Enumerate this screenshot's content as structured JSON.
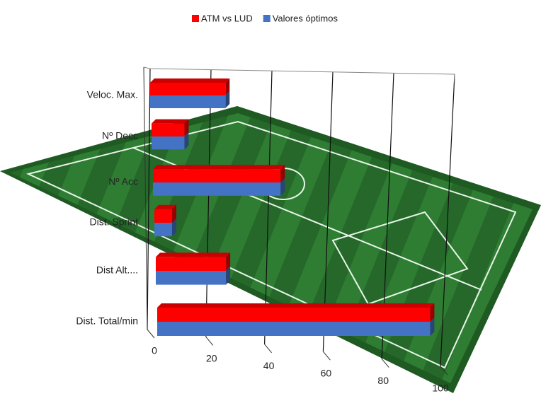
{
  "chart_data": {
    "type": "bar",
    "orientation": "horizontal",
    "categories": [
      "Veloc. Max.",
      "Nº Decc",
      "Nº Acc",
      "Dist. Sprint",
      "Dist Alt....",
      "Dist. Total/min"
    ],
    "series": [
      {
        "name": "ATM vs LUD",
        "color": "#ff0000",
        "values": [
          25,
          11,
          43,
          6,
          24,
          94
        ]
      },
      {
        "name": "Valores óptimos",
        "color": "#4472c4",
        "values": [
          25,
          11,
          43,
          6,
          24,
          94
        ]
      }
    ],
    "xlim": [
      0,
      100
    ],
    "xticks": [
      0,
      20,
      40,
      60,
      80,
      100
    ],
    "grid": true,
    "legend": "top"
  }
}
